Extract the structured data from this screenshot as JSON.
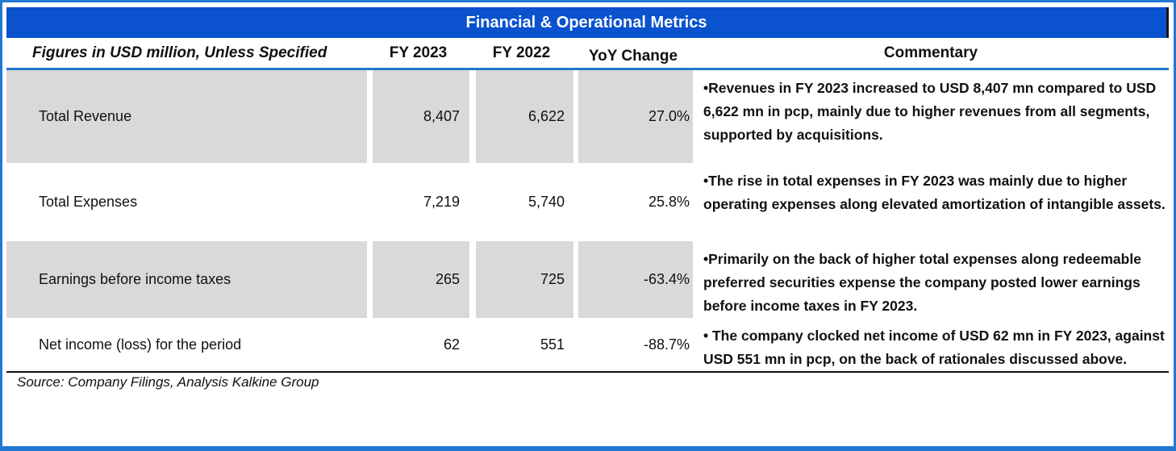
{
  "title": "Financial & Operational Metrics",
  "header": {
    "label": "Figures in USD million, Unless Specified",
    "fy2023": "FY 2023",
    "fy2022": "FY 2022",
    "yoy": "YoY Change",
    "commentary": "Commentary"
  },
  "rows": [
    {
      "label": "Total Revenue",
      "fy2023": "8,407",
      "fy2022": "6,622",
      "yoy": "27.0%",
      "commentary": "•Revenues in FY 2023 increased to USD 8,407 mn compared to USD 6,622 mn in pcp, mainly due to higher revenues from all segments, supported by acquisitions."
    },
    {
      "label": "Total Expenses",
      "fy2023": "7,219",
      "fy2022": "5,740",
      "yoy": "25.8%",
      "commentary": "•The rise in total expenses in FY 2023 was mainly due to higher operating expenses along elevated amortization of intangible assets."
    },
    {
      "label": "Earnings before income taxes",
      "fy2023": "265",
      "fy2022": "725",
      "yoy": "-63.4%",
      "commentary": "•Primarily on the back of higher total expenses along redeemable preferred securities expense the company posted lower earnings before income taxes in FY 2023."
    },
    {
      "label": "Net income (loss) for the period",
      "fy2023": "62",
      "fy2022": "551",
      "yoy": "-88.7%",
      "commentary": "• The company clocked net income of USD 62 mn in FY 2023, against USD 551 mn in pcp, on the back of rationales discussed above."
    }
  ],
  "source": "Source: Company Filings, Analysis Kalkine Group",
  "colors": {
    "title_bar": "#0a52ce",
    "frame_blue": "#2277d0",
    "row_stripe": "#d9d9d9"
  }
}
